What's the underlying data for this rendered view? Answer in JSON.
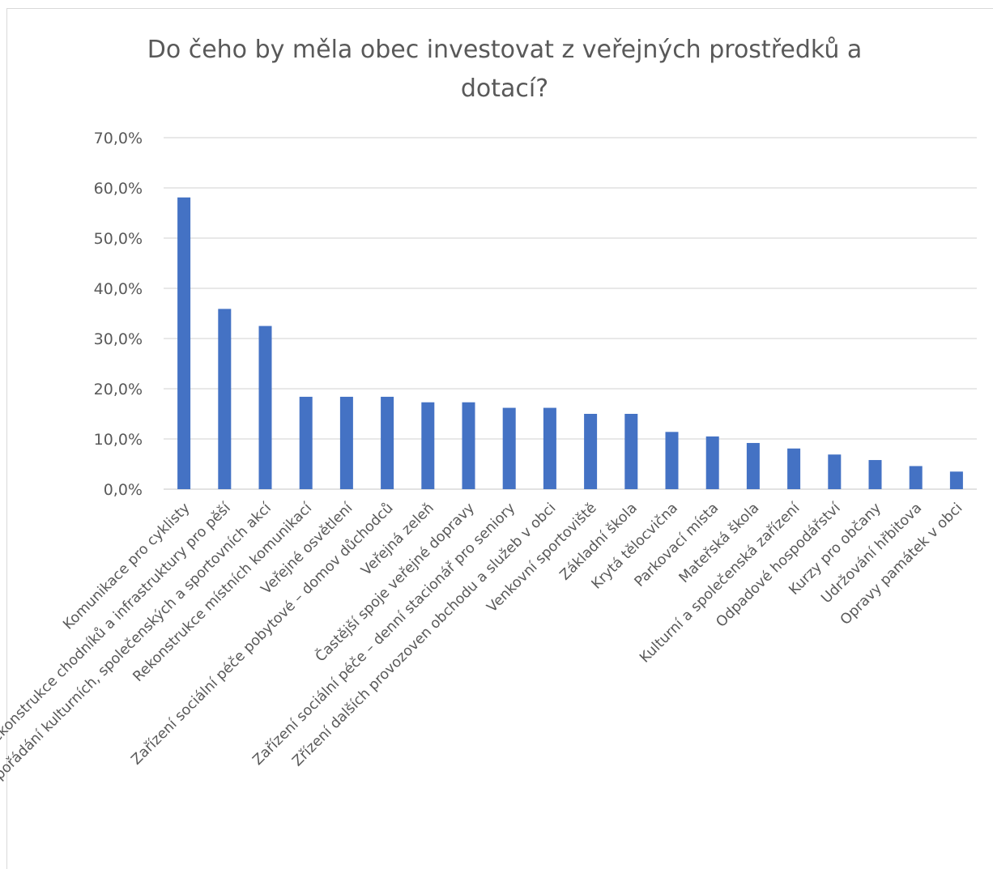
{
  "chart_data": {
    "type": "bar",
    "title": "Do čeho by měla obec investovat z veřejných prostředků a dotací?",
    "title_lines": [
      "Do čeho by měla obec investovat z veřejných prostředků a",
      "dotací?"
    ],
    "xlabel": "",
    "ylabel": "",
    "ylim": [
      0,
      70
    ],
    "yticks": [
      "0,0%",
      "10,0%",
      "20,0%",
      "30,0%",
      "40,0%",
      "50,0%",
      "60,0%",
      "70,0%"
    ],
    "ytick_values": [
      0,
      10,
      20,
      30,
      40,
      50,
      60,
      70
    ],
    "grid": true,
    "legend": "none",
    "bar_color": "#4472c4",
    "categories": [
      "Komunikace pro cyklisty",
      "Rekonstrukce chodníků a infrastruktury pro pěší",
      "Prostory pro pořádání kulturních, společenských a sportovních akcí",
      "Rekonstrukce místních komunikací",
      "Veřejné osvětlení",
      "Zařízení sociální péče pobytové – domov důchodců",
      "Veřejná zeleň",
      "Častější spoje veřejné dopravy",
      "Zařízení sociální péče – denní stacionář pro seniory",
      "Zřízení dalších provozoven obchodu a služeb v obci",
      "Venkovní sportoviště",
      "Základní škola",
      "Krytá tělocvična",
      "Parkovací místa",
      "Mateřská škola",
      "Kulturní a společenská zařízení",
      "Odpadové hospodářství",
      "Kurzy pro občany",
      "Udržování hřbitova",
      "Opravy památek v obci"
    ],
    "values": [
      58.1,
      35.9,
      32.5,
      18.4,
      18.4,
      18.4,
      17.3,
      17.3,
      16.2,
      16.2,
      15.0,
      15.0,
      11.4,
      10.5,
      9.2,
      8.1,
      6.9,
      5.8,
      4.6,
      3.5
    ]
  }
}
